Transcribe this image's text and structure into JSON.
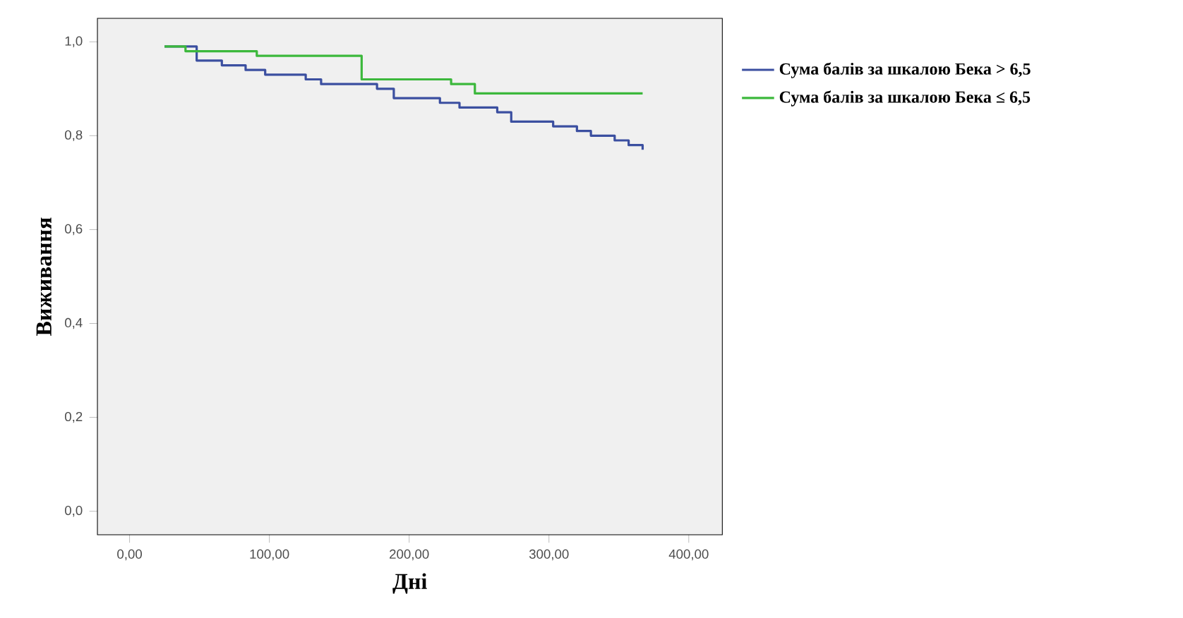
{
  "chart_data": {
    "type": "step",
    "xlabel": "Дні",
    "ylabel": "Виживання",
    "xlim": [
      -23,
      424
    ],
    "ylim": [
      -0.05,
      1.05
    ],
    "xticks": [
      {
        "value": 0,
        "label": "0,00"
      },
      {
        "value": 100,
        "label": "100,00"
      },
      {
        "value": 200,
        "label": "200,00"
      },
      {
        "value": 300,
        "label": "300,00"
      },
      {
        "value": 400,
        "label": "400,00"
      }
    ],
    "yticks": [
      {
        "value": 0,
        "label": "0,0"
      },
      {
        "value": 0.2,
        "label": "0,2"
      },
      {
        "value": 0.4,
        "label": "0,4"
      },
      {
        "value": 0.6,
        "label": "0,6"
      },
      {
        "value": 0.8,
        "label": "0,8"
      },
      {
        "value": 1.0,
        "label": "1,0"
      }
    ],
    "legend": "right",
    "series": [
      {
        "name": "Сума балів за шкалою Бека > 6,5",
        "color": "#3b4fa0",
        "x": [
          25,
          48,
          66,
          83,
          97,
          126,
          137,
          177,
          189,
          222,
          236,
          263,
          273,
          303,
          320,
          330,
          347,
          357,
          367
        ],
        "values": [
          0.99,
          0.96,
          0.95,
          0.94,
          0.93,
          0.92,
          0.91,
          0.9,
          0.88,
          0.87,
          0.86,
          0.85,
          0.83,
          0.82,
          0.81,
          0.8,
          0.79,
          0.78,
          0.77
        ]
      },
      {
        "name": "Сума балів за шкалою Бека ≤ 6,5",
        "color": "#3cb83c",
        "x": [
          25,
          40,
          91,
          166,
          230,
          247,
          367
        ],
        "values": [
          0.99,
          0.98,
          0.97,
          0.92,
          0.91,
          0.89,
          0.89
        ]
      }
    ]
  }
}
